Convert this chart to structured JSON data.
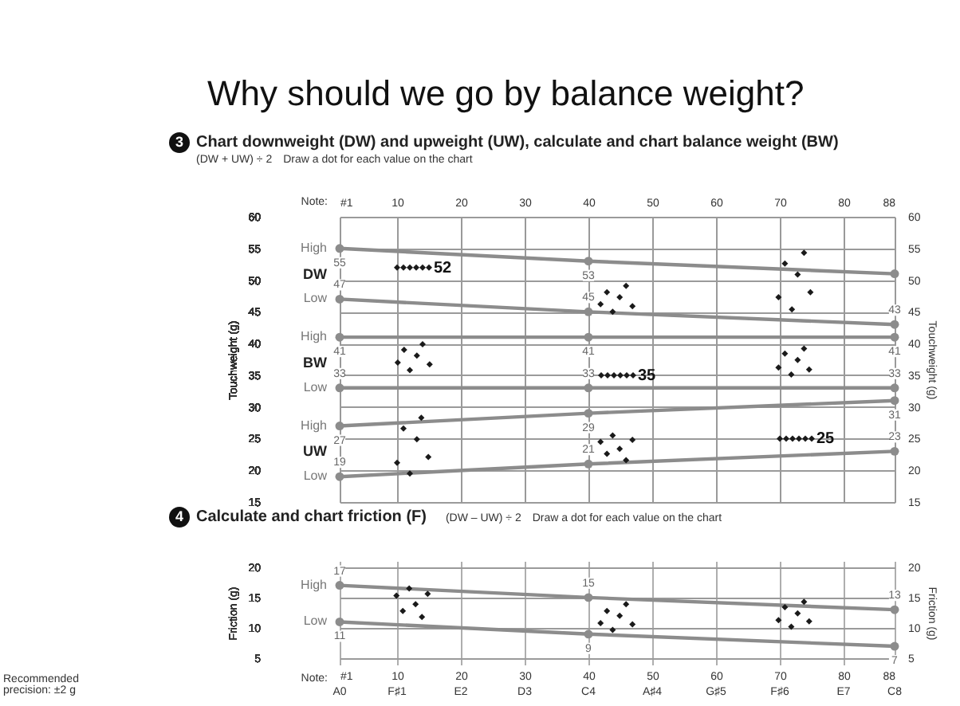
{
  "chart_data": [
    {
      "type": "line",
      "title": "Why should we go by balance weight?",
      "subtitle": "Chart downweight (DW) and upweight (UW), calculate and chart balance weight (BW)",
      "annotations": [
        "3",
        "(DW + UW) ÷ 2",
        "Draw a dot for each value on the chart",
        "DW",
        "BW",
        "UW",
        {
          "text": "52",
          "x": 15,
          "y": 52
        },
        {
          "text": "35",
          "x": 47,
          "y": 35
        },
        {
          "text": "25",
          "x": 75,
          "y": 25
        },
        {
          "text": "High",
          "x": 1,
          "y": 55
        },
        {
          "text": "Low",
          "x": 1,
          "y": 47
        },
        {
          "text": "High",
          "x": 1,
          "y": 41
        },
        {
          "text": "Low",
          "x": 1,
          "y": 33
        },
        {
          "text": "High",
          "x": 1,
          "y": 27
        },
        {
          "text": "Low",
          "x": 1,
          "y": 19
        }
      ],
      "x": [
        1,
        40,
        88
      ],
      "xlim": [
        1,
        88
      ],
      "x2label": "Note:",
      "x2lim": [
        1,
        88
      ],
      "x2ticks": [
        {
          "value": 1,
          "label": "#1"
        },
        10,
        20,
        30,
        40,
        50,
        60,
        70,
        80,
        88
      ],
      "ylabel": "Touchweight (g)",
      "ylim": [
        15,
        60
      ],
      "yticks": [
        15,
        20,
        25,
        30,
        35,
        40,
        45,
        50,
        55,
        60
      ],
      "y2label": "Touchweight (g)",
      "y2lim": [
        15,
        60
      ],
      "y2ticks": [
        15,
        20,
        25,
        30,
        35,
        40,
        45,
        50,
        55,
        60
      ],
      "grid": true,
      "marker": "circle",
      "tick_labels": "y",
      "series": [
        {
          "color": "#8c8c8c",
          "values": [
            55,
            53,
            51
          ],
          "value_labels": [
            "55",
            "53",
            null
          ]
        },
        {
          "color": "#8c8c8c",
          "values": [
            47,
            45,
            43
          ],
          "value_labels": [
            "47",
            "45",
            "43"
          ]
        },
        {
          "color": "#8c8c8c",
          "values": [
            41,
            41,
            41
          ],
          "value_labels": [
            "41",
            "41",
            "41"
          ]
        },
        {
          "color": "#8c8c8c",
          "values": [
            33,
            33,
            33
          ],
          "value_labels": [
            "33",
            "33",
            "33"
          ]
        },
        {
          "color": "#8c8c8c",
          "values": [
            27,
            29,
            31
          ],
          "value_labels": [
            "27",
            "29",
            "31"
          ]
        },
        {
          "color": "#8c8c8c",
          "values": [
            19,
            21,
            23
          ],
          "value_labels": [
            "19",
            "21",
            "23"
          ]
        },
        {
          "type": "scatter",
          "marker": "diamond",
          "color": "#1a1a1a",
          "x": [
            10,
            11,
            12,
            13,
            14,
            15,
            42.9,
            44.9,
            45.9,
            41.9,
            43.8,
            46.9,
            70.8,
            73.8,
            72.8,
            74.8,
            69.8,
            71.9,
            11.1,
            14,
            10.1,
            13.1,
            12,
            15.1,
            42,
            43,
            44,
            45,
            46,
            47,
            70.8,
            73.8,
            72.8,
            69.8,
            71.8,
            74.6,
            13.8,
            11,
            13.1,
            14.9,
            10,
            12,
            41.9,
            43.8,
            46.9,
            42.9,
            44.9,
            45.9,
            70,
            71,
            72,
            73,
            74,
            75
          ],
          "values": [
            52,
            52,
            52,
            52,
            52,
            52,
            48.1,
            47.3,
            49.1,
            46.2,
            45,
            45.9,
            52.6,
            54.3,
            50.9,
            48.1,
            47.3,
            45.4,
            39,
            39.9,
            37,
            38.1,
            35.8,
            36.7,
            35,
            35,
            35,
            35,
            35,
            35,
            38.4,
            39.2,
            37.4,
            36.2,
            35.1,
            35.9,
            28.3,
            26.6,
            24.9,
            22.1,
            21.2,
            19.5,
            24.5,
            25.5,
            24.8,
            22.6,
            23.4,
            21.6,
            25,
            25,
            25,
            25,
            25,
            25
          ]
        }
      ]
    },
    {
      "type": "line",
      "title": "Calculate and chart friction (F)",
      "annotations": [
        "4",
        "(DW – UW) ÷ 2",
        "Draw a dot for each value on the chart",
        "Recommended precision: ±2 g",
        "A0",
        "F♯1",
        "E2",
        "D3",
        "C4",
        "A♯4",
        "G♯5",
        "F♯6",
        "E7",
        "C8",
        {
          "text": "High",
          "x": 1,
          "y": 17
        },
        {
          "text": "Low",
          "x": 1,
          "y": 11
        }
      ],
      "x": [
        1,
        40,
        88
      ],
      "xlabel": "Note:",
      "xlim": [
        1,
        88
      ],
      "xticks": [
        {
          "value": 1,
          "label": "#1"
        },
        10,
        20,
        30,
        40,
        50,
        60,
        70,
        80,
        88
      ],
      "ylabel": "Friction (g)",
      "ylim": [
        4,
        21
      ],
      "yticks": [
        5,
        10,
        15,
        20
      ],
      "y2label": "Friction (g)",
      "y2lim": [
        4,
        21
      ],
      "y2ticks": [
        5,
        10,
        15,
        20
      ],
      "grid": true,
      "marker": "circle",
      "series": [
        {
          "color": "#8c8c8c",
          "values": [
            17,
            15,
            13
          ],
          "value_labels": [
            "17",
            "15",
            "13"
          ]
        },
        {
          "color": "#8c8c8c",
          "values": [
            11,
            9,
            7
          ],
          "value_labels": [
            "11",
            "9",
            "7"
          ]
        },
        {
          "type": "scatter",
          "marker": "diamond",
          "color": "#1a1a1a",
          "x": [
            9.9,
            11.9,
            14.8,
            10.9,
            12.9,
            13.9,
            42.9,
            45.9,
            44.9,
            41.9,
            43.8,
            46.9,
            70.8,
            73.8,
            72.8,
            69.8,
            71.8,
            74.6
          ],
          "values": [
            15.3,
            16.5,
            15.6,
            12.8,
            13.9,
            11.8,
            12.8,
            13.9,
            12,
            10.8,
            9.7,
            10.6,
            13.4,
            14.3,
            12.4,
            11.3,
            10.2,
            11.1
          ]
        }
      ]
    }
  ]
}
